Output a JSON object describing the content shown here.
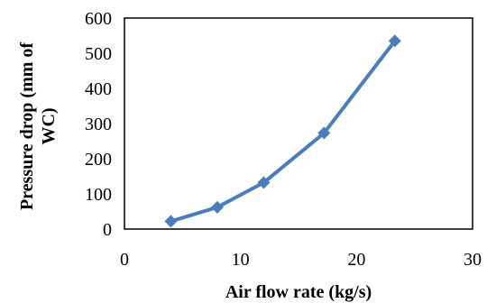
{
  "chart_data": {
    "type": "line",
    "xlabel": "Air flow rate (kg/s)",
    "ylabel_lines": [
      "Pressure drop (mm of",
      "WC)"
    ],
    "xlim": [
      0,
      30
    ],
    "ylim": [
      0,
      600
    ],
    "xticks": [
      0,
      10,
      20,
      30
    ],
    "yticks": [
      0,
      100,
      200,
      300,
      400,
      500,
      600
    ],
    "grid": false,
    "legend": "none",
    "series": [
      {
        "color": "#4a7ebb",
        "marker": "diamond",
        "x": [
          4.0,
          8.0,
          12.0,
          17.2,
          23.3
        ],
        "y": [
          22,
          62,
          132,
          273,
          535
        ]
      }
    ]
  }
}
